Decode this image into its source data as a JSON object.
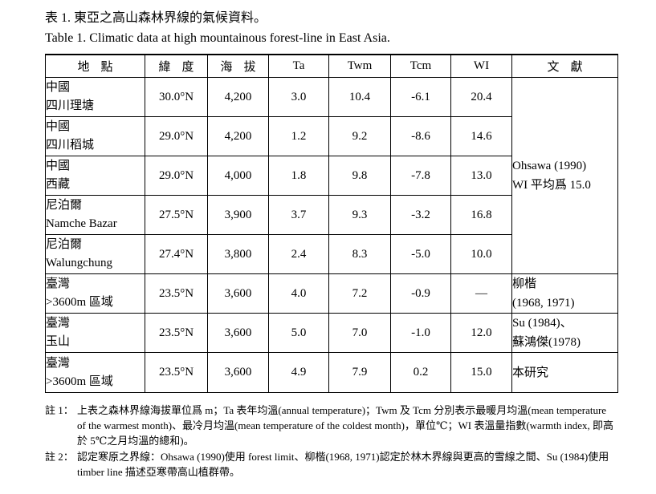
{
  "caption": {
    "zh": "表 1. 東亞之高山森林界線的氣候資料。",
    "en": "Table 1. Climatic data at high mountainous forest-line in East Asia."
  },
  "table": {
    "headers": {
      "location": "地點",
      "latitude": "緯度",
      "altitude": "海拔",
      "ta": "Ta",
      "twm": "Twm",
      "tcm": "Tcm",
      "wi": "WI",
      "reference": "文獻"
    },
    "rows": [
      {
        "region": "中國",
        "site": "四川理塘",
        "lat": "30.0°N",
        "alt": "4,200",
        "ta": "3.0",
        "twm": "10.4",
        "tcm": "-6.1",
        "wi": "20.4"
      },
      {
        "region": "中國",
        "site": "四川稻城",
        "lat": "29.0°N",
        "alt": "4,200",
        "ta": "1.2",
        "twm": "9.2",
        "tcm": "-8.6",
        "wi": "14.6"
      },
      {
        "region": "中國",
        "site": "西藏",
        "lat": "29.0°N",
        "alt": "4,000",
        "ta": "1.8",
        "twm": "9.8",
        "tcm": "-7.8",
        "wi": "13.0"
      },
      {
        "region": "尼泊爾",
        "site": "Namche Bazar",
        "lat": "27.5°N",
        "alt": "3,900",
        "ta": "3.7",
        "twm": "9.3",
        "tcm": "-3.2",
        "wi": "16.8"
      },
      {
        "region": "尼泊爾",
        "site": "Walungchung",
        "lat": "27.4°N",
        "alt": "3,800",
        "ta": "2.4",
        "twm": "8.3",
        "tcm": "-5.0",
        "wi": "10.0"
      },
      {
        "region": "臺灣",
        "site": ">3600m 區域",
        "lat": "23.5°N",
        "alt": "3,600",
        "ta": "4.0",
        "twm": "7.2",
        "tcm": "-0.9",
        "wi": "—"
      },
      {
        "region": "臺灣",
        "site": "玉山",
        "lat": "23.5°N",
        "alt": "3,600",
        "ta": "5.0",
        "twm": "7.0",
        "tcm": "-1.0",
        "wi": "12.0"
      },
      {
        "region": "臺灣",
        "site": ">3600m 區域",
        "lat": "23.5°N",
        "alt": "3,600",
        "ta": "4.9",
        "twm": "7.9",
        "tcm": "0.2",
        "wi": "15.0"
      }
    ],
    "references": {
      "ohsawa_line1": "Ohsawa (1990)",
      "ohsawa_line2": "WI 平均爲 15.0",
      "liu_line1": "柳楷",
      "liu_line2": "(1968, 1971)",
      "su_line1": "Su (1984)、",
      "su_line2": "蘇鴻傑(1978)",
      "this_study": "本研究"
    }
  },
  "notes": [
    {
      "label": "註 1：",
      "text": "上表之森林界線海拔單位爲 m；Ta 表年均溫(annual temperature)；Twm 及 Tcm 分別表示最暖月均溫(mean temperature of the warmest month)、最冷月均溫(mean temperature of the coldest month)，單位℃；WI 表溫量指數(warmth index, 即高於 5℃之月均溫的總和)。"
    },
    {
      "label": "註 2：",
      "text": "認定寒原之界線：Ohsawa (1990)使用 forest limit、柳楷(1968, 1971)認定於林木界線與更高的雪線之間、Su (1984)使用 timber line 描述亞寒帶高山植群帶。"
    }
  ]
}
